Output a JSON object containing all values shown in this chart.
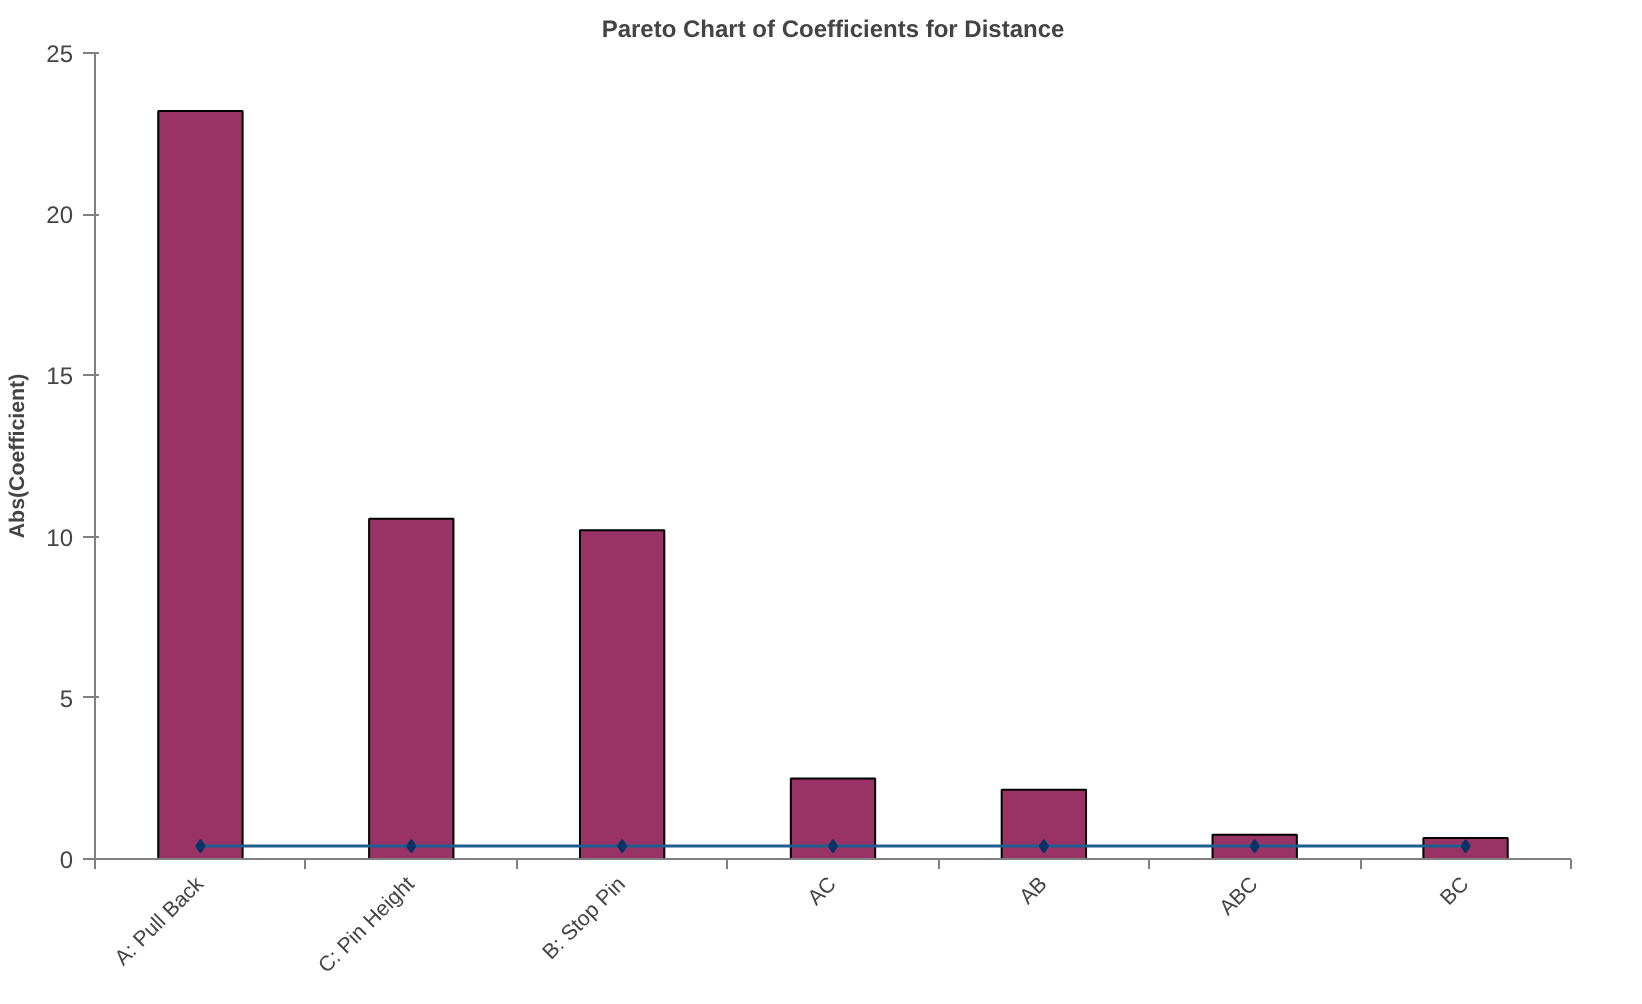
{
  "chart_data": {
    "type": "bar",
    "title": "Pareto Chart of Coefficients for Distance",
    "ylabel": "Abs(Coefficient)",
    "categories": [
      "A: Pull Back",
      "C: Pin Height",
      "B: Stop Pin",
      "AC",
      "AB",
      "ABC",
      "BC"
    ],
    "series": [
      {
        "color": "#993366",
        "values": [
          23.2,
          10.55,
          10.2,
          2.5,
          2.15,
          0.75,
          0.65
        ]
      },
      {
        "type": "line",
        "color": "#1f5f8f",
        "marker": "diamond",
        "values": [
          0.4,
          0.4,
          0.4,
          0.4,
          0.4,
          0.4,
          0.4
        ]
      }
    ],
    "ylim": [
      0,
      25
    ],
    "yticks": [
      0,
      5,
      10,
      15,
      20,
      25
    ],
    "grid": false
  }
}
